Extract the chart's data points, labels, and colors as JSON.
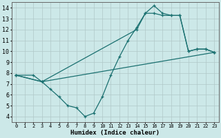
{
  "xlabel": "Humidex (Indice chaleur)",
  "bg_color": "#cce8e8",
  "grid_color": "#b0c8c8",
  "line_color": "#1a7070",
  "xlim": [
    -0.5,
    23.5
  ],
  "ylim": [
    3.5,
    14.5
  ],
  "xticks": [
    0,
    1,
    2,
    3,
    4,
    5,
    6,
    7,
    8,
    9,
    10,
    11,
    12,
    13,
    14,
    15,
    16,
    17,
    18,
    19,
    20,
    21,
    22,
    23
  ],
  "yticks": [
    4,
    5,
    6,
    7,
    8,
    9,
    10,
    11,
    12,
    13,
    14
  ],
  "line1_x": [
    0,
    2,
    3,
    4,
    5,
    6,
    7,
    8,
    9,
    10,
    11,
    12,
    13,
    14,
    15,
    16,
    17,
    18,
    19,
    20,
    21,
    22,
    23
  ],
  "line1_y": [
    7.8,
    7.8,
    7.2,
    6.5,
    5.8,
    5.0,
    4.8,
    4.0,
    4.3,
    5.8,
    7.8,
    9.5,
    11.0,
    12.2,
    13.5,
    14.2,
    13.5,
    13.3,
    13.3,
    10.0,
    10.2,
    10.2,
    9.9
  ],
  "line2_x": [
    0,
    3,
    14,
    15,
    16,
    17,
    18,
    19,
    20,
    21,
    22,
    23
  ],
  "line2_y": [
    7.8,
    7.2,
    12.0,
    13.5,
    13.5,
    13.3,
    13.3,
    13.3,
    10.0,
    10.2,
    10.2,
    9.9
  ],
  "line3_x": [
    0,
    3,
    23
  ],
  "line3_y": [
    7.8,
    7.2,
    9.9
  ]
}
